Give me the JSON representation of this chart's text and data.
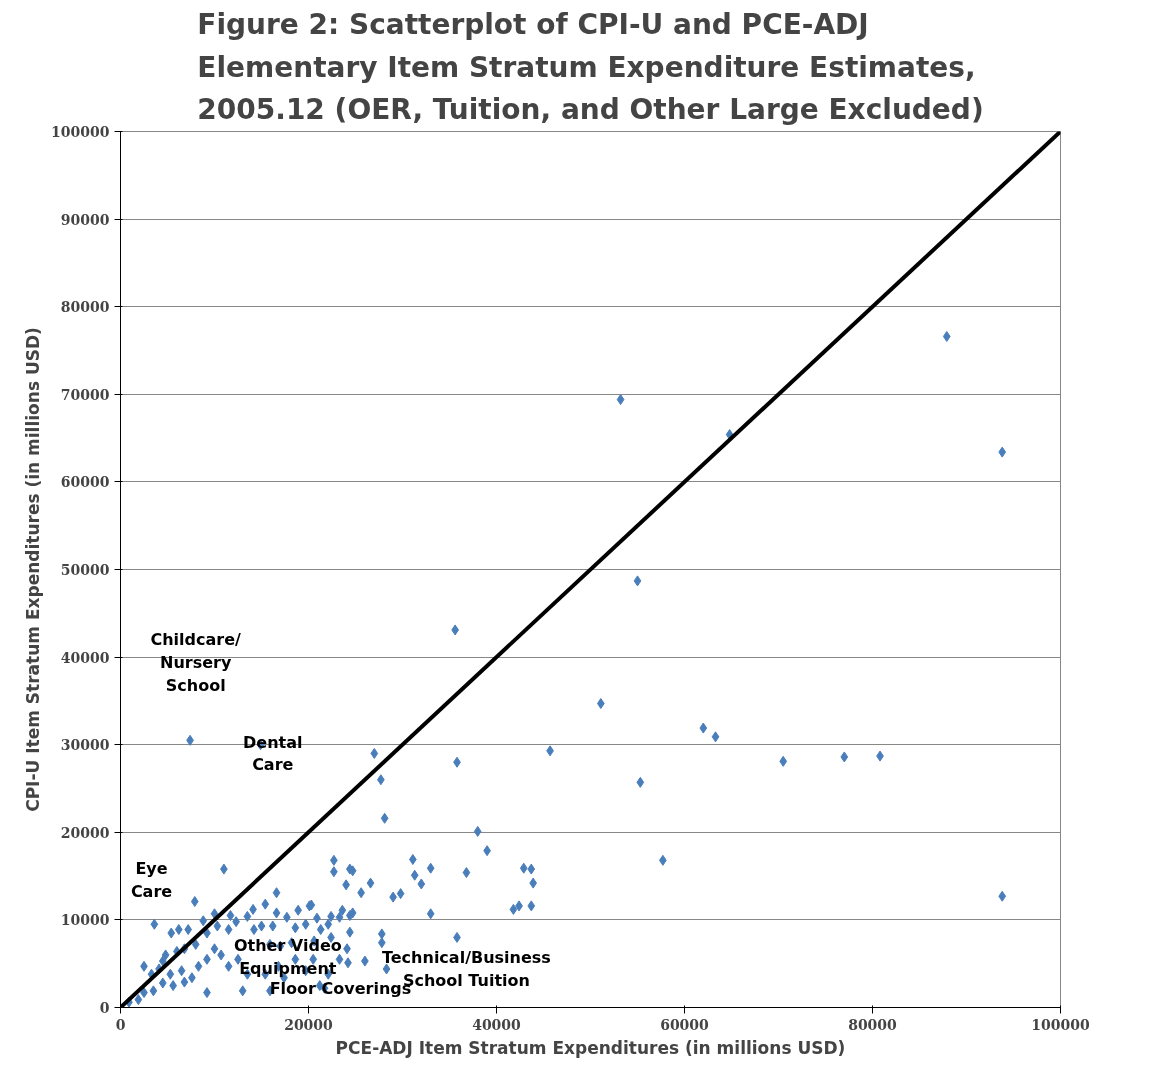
{
  "chart_data": {
    "type": "scatter",
    "title": "Figure 2: Scatterplot of CPI-U and PCE-ADJ\nElementary Item Stratum Expenditure Estimates,\n2005.12 (OER, Tuition, and Other Large Excluded)",
    "xlabel": "PCE-ADJ Item Stratum Expenditures (in millions USD)",
    "ylabel": "CPI-U Item Stratum Expenditures (in millions USD)",
    "xlim": [
      0,
      100000
    ],
    "ylim": [
      0,
      100000
    ],
    "xticks": [
      0,
      20000,
      40000,
      60000,
      80000,
      100000
    ],
    "yticks": [
      0,
      10000,
      20000,
      30000,
      40000,
      50000,
      60000,
      70000,
      80000,
      90000,
      100000
    ],
    "grid": "y",
    "series": [
      {
        "color": "#4a7ebb",
        "marker": "diamond",
        "x": [
          87900,
          93800,
          53200,
          64800,
          55000,
          35600,
          51100,
          62000,
          63300,
          45700,
          27000,
          35800,
          27700,
          55300,
          28100,
          38000,
          39000,
          57700,
          31100,
          31300,
          32000,
          33000,
          36800,
          42900,
          43700,
          43900,
          41800,
          42400,
          43700,
          33000,
          26600,
          25600,
          29000,
          29800,
          24700,
          24700,
          27800,
          27800,
          28300,
          35800,
          26000,
          70500,
          77000,
          80800,
          93800,
          7400,
          14900,
          11000,
          7900,
          3600,
          16600,
          22700,
          22700,
          24400,
          24000,
          14100,
          15400,
          16600,
          13500,
          12300,
          11700,
          17700,
          18900,
          20100,
          20300,
          20900,
          22400,
          23600,
          23300,
          24400,
          22100,
          21300,
          19700,
          18600,
          16200,
          15000,
          14200,
          11500,
          10300,
          9200,
          7200,
          6200,
          5400,
          8000,
          6800,
          6000,
          4800,
          4500,
          2500,
          3300,
          4100,
          5300,
          6500,
          7600,
          6800,
          5600,
          4500,
          3500,
          2500,
          1900,
          900,
          8300,
          9200,
          10000,
          10700,
          9200,
          11500,
          12500,
          13500,
          13000,
          15400,
          15900,
          16800,
          17400,
          18600,
          19700,
          20500,
          21200,
          21700,
          22100,
          23300,
          24100,
          24200,
          22400,
          24400,
          15900,
          17000,
          18200,
          20600,
          8800,
          10000
        ],
        "values": [
          76600,
          63400,
          69400,
          65400,
          48700,
          43100,
          34700,
          31900,
          30900,
          29300,
          29000,
          28000,
          26000,
          25700,
          21600,
          20100,
          17900,
          16800,
          16900,
          15100,
          14100,
          15900,
          15400,
          15900,
          15800,
          14200,
          11200,
          11600,
          11600,
          10700,
          14200,
          13100,
          12600,
          13000,
          15600,
          10800,
          8400,
          7400,
          4400,
          8000,
          5300,
          28100,
          28600,
          28700,
          12700,
          30500,
          30000,
          15800,
          12100,
          9500,
          13100,
          16800,
          15500,
          15800,
          14000,
          11200,
          11800,
          10800,
          10400,
          9800,
          10500,
          10300,
          11100,
          11600,
          11700,
          10200,
          10400,
          11100,
          10300,
          10500,
          9500,
          8900,
          9500,
          9100,
          9300,
          9300,
          8900,
          8900,
          9300,
          8500,
          8900,
          8900,
          8500,
          7200,
          6700,
          6400,
          6000,
          5300,
          4700,
          3800,
          4400,
          3800,
          4200,
          3400,
          2900,
          2500,
          2800,
          1900,
          1700,
          900,
          600,
          4700,
          5500,
          6700,
          6000,
          1700,
          4700,
          5500,
          3800,
          1900,
          3800,
          1900,
          4700,
          3400,
          5500,
          4200,
          5500,
          2500,
          2200,
          3800,
          5500,
          6700,
          5100,
          8000,
          8600,
          7200,
          7000,
          7400,
          7600,
          9900,
          10700
        ]
      },
      {
        "type": "line",
        "color": "#000000",
        "x": [
          0,
          100000
        ],
        "values": [
          0,
          100000
        ]
      }
    ],
    "annotations": [
      "Childcare/\nNursery\nSchool",
      "Dental\nCare",
      "Eye\nCare",
      "Other Video\nEquipment",
      "Technical/Business\nSchool Tuition",
      "Floor Coverings"
    ]
  }
}
